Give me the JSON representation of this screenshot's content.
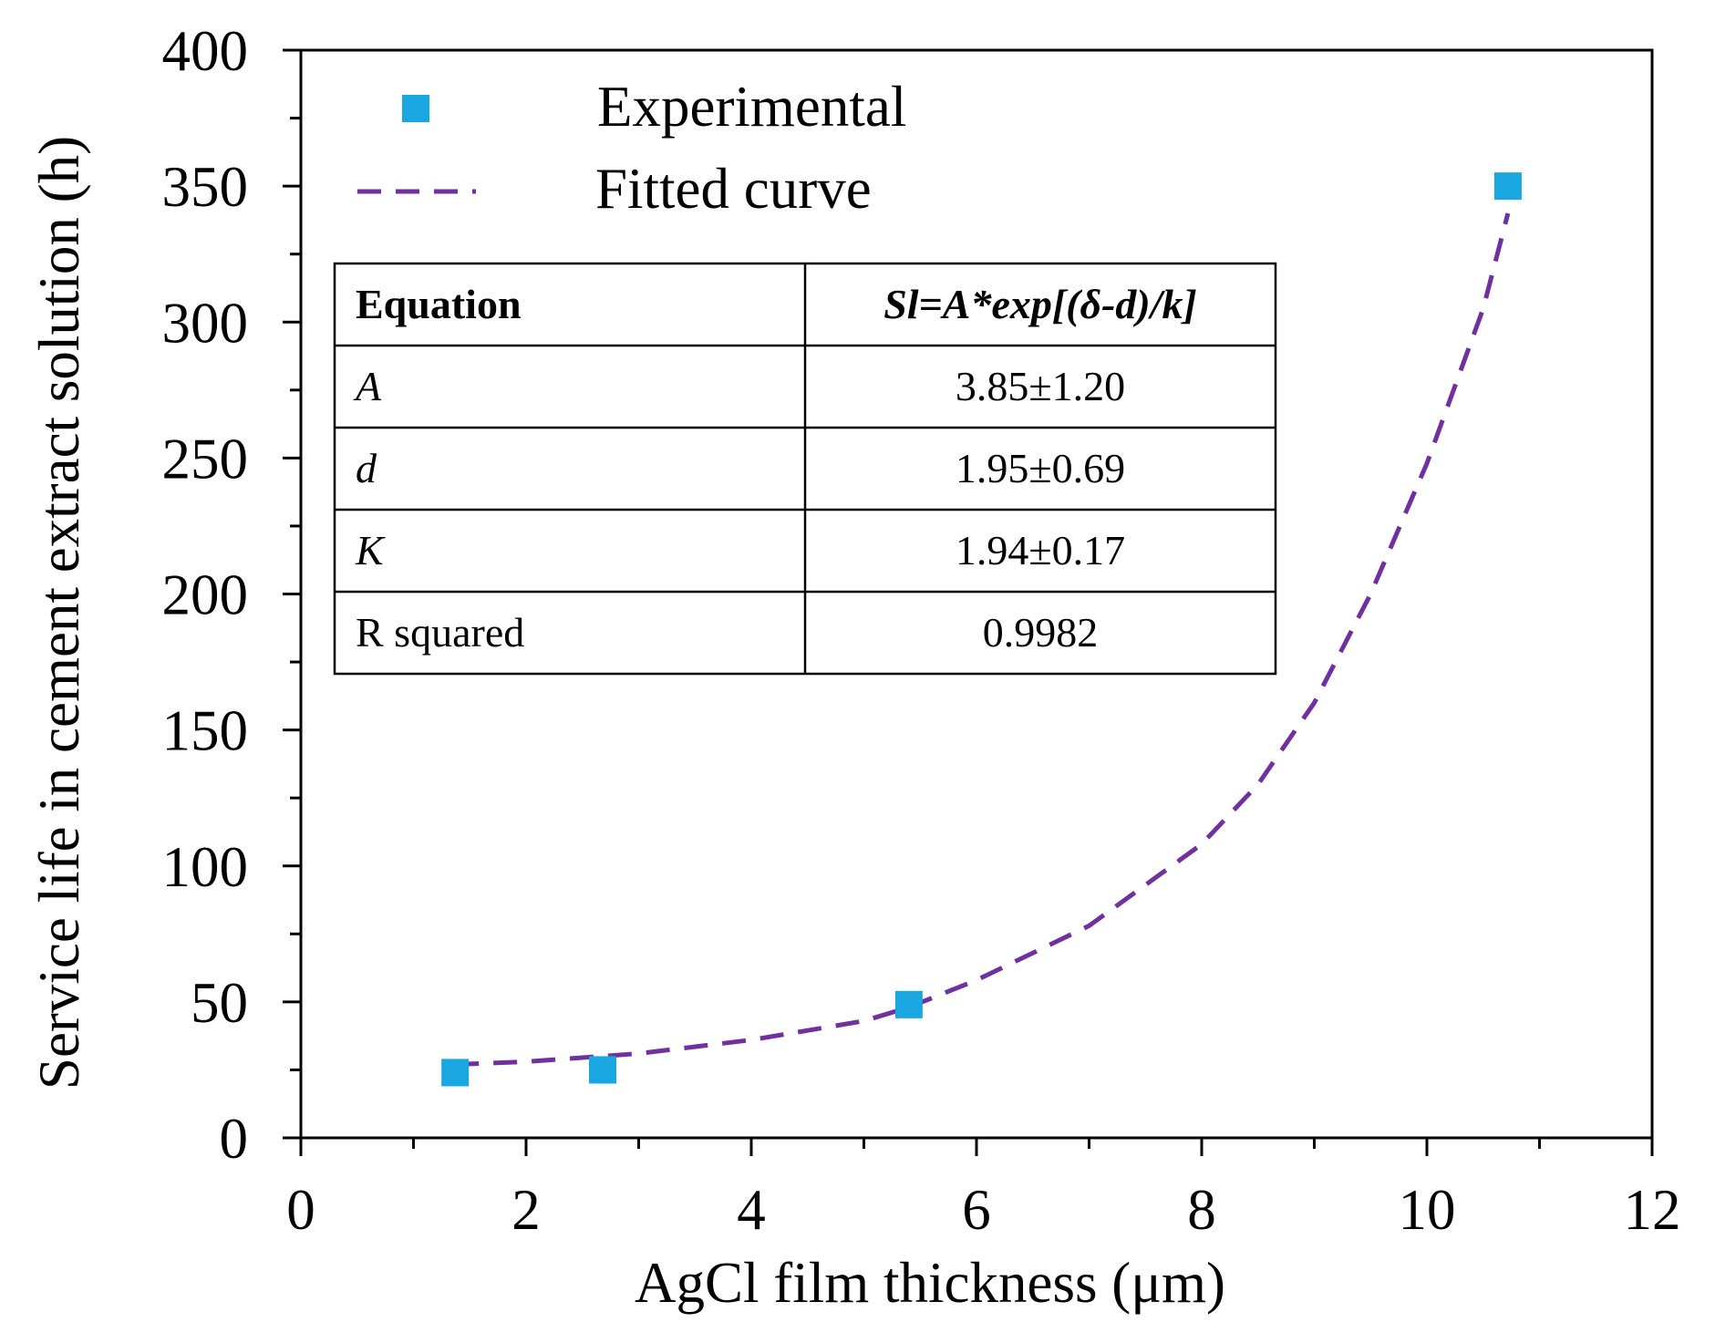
{
  "chart_data": {
    "type": "scatter",
    "xlabel": "AgCl film thickness (μm)",
    "ylabel": "Service life in cement extract solution (h)",
    "xlim": [
      0,
      12
    ],
    "ylim": [
      0,
      400
    ],
    "x_ticks": [
      "0",
      "2",
      "4",
      "6",
      "8",
      "10",
      "12"
    ],
    "y_ticks": [
      "0",
      "50",
      "100",
      "150",
      "200",
      "250",
      "300",
      "350",
      "400"
    ],
    "grid": false,
    "legend_position": "top-left",
    "series": [
      {
        "name": "Experimental",
        "kind": "markers",
        "color": "#1aa7e1",
        "x": [
          1.37,
          2.68,
          5.4,
          10.72
        ],
        "y": [
          24,
          25,
          49,
          350
        ]
      },
      {
        "name": "Fitted curve",
        "kind": "dashed-line",
        "color": "#7030a0",
        "x": [
          1.37,
          2.0,
          3.0,
          4.0,
          5.0,
          5.4,
          6.0,
          7.0,
          8.0,
          8.5,
          9.0,
          9.5,
          10.0,
          10.5,
          10.72
        ],
        "y": [
          27,
          28,
          31,
          36,
          43,
          48,
          58,
          78,
          108,
          130,
          160,
          200,
          248,
          305,
          340
        ]
      }
    ],
    "table": {
      "header": [
        "Equation",
        "Sl=A*exp[(δ-d)/k]"
      ],
      "rows": [
        [
          "A",
          "3.85±1.20"
        ],
        [
          "d",
          "1.95±0.69"
        ],
        [
          "K",
          "1.94±0.17"
        ],
        [
          "R squared",
          "0.9982"
        ]
      ]
    }
  }
}
